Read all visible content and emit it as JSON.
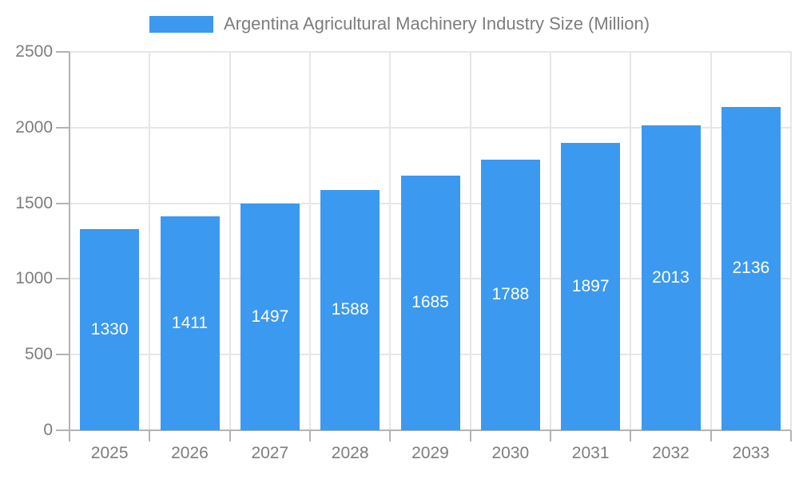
{
  "chart_data": {
    "type": "bar",
    "title": "Argentina Agricultural Machinery Industry Size (Million)",
    "categories": [
      "2025",
      "2026",
      "2027",
      "2028",
      "2029",
      "2030",
      "2031",
      "2032",
      "2033"
    ],
    "values": [
      1330,
      1411,
      1497,
      1588,
      1685,
      1788,
      1897,
      2013,
      2136
    ],
    "series": [
      {
        "name": "Argentina Agricultural Machinery Industry Size (Million)",
        "values": [
          1330,
          1411,
          1497,
          1588,
          1685,
          1788,
          1897,
          2013,
          2136
        ]
      }
    ],
    "xlabel": "",
    "ylabel": "",
    "ylim": [
      0,
      2500
    ],
    "yticks": [
      0,
      500,
      1000,
      1500,
      2000,
      2500
    ],
    "grid": true,
    "legend_position": "top-center",
    "bar_value_labels": true
  },
  "colors": {
    "bar": "#3C99F0",
    "axis": "#b3b3b3",
    "grid": "#e6e6e6",
    "text": "#7d7d7d",
    "bar_label": "#ffffff",
    "background": "#ffffff"
  }
}
